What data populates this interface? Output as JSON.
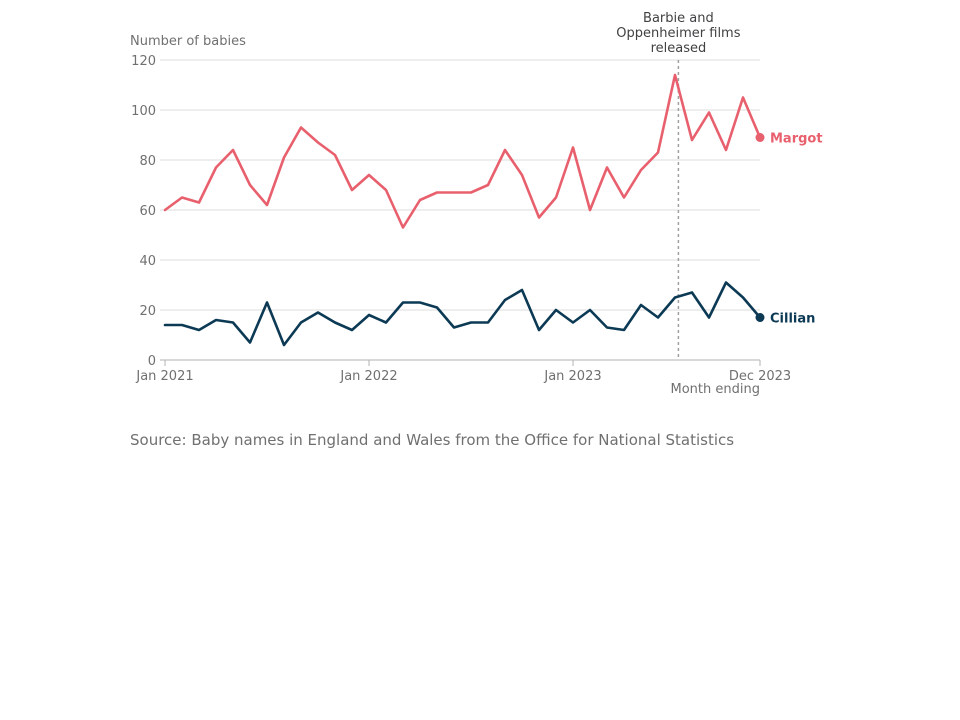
{
  "chart_data": {
    "type": "line",
    "ylabel": "Number of babies",
    "xlabel": "Month ending",
    "ylim": [
      0,
      120
    ],
    "yticks": [
      0,
      20,
      40,
      60,
      80,
      100,
      120
    ],
    "x_start": "Jan 2021",
    "x_end": "Dec 2023",
    "xticks": [
      {
        "month_index": 0,
        "label": "Jan 2021"
      },
      {
        "month_index": 12,
        "label": "Jan 2022"
      },
      {
        "month_index": 24,
        "label": "Jan 2023"
      },
      {
        "month_index": 35,
        "label": "Dec 2023"
      }
    ],
    "grid": true,
    "series": [
      {
        "name": "Margot",
        "color": "#e8606d",
        "values": [
          60,
          65,
          63,
          77,
          84,
          70,
          62,
          81,
          93,
          87,
          82,
          68,
          74,
          68,
          53,
          64,
          67,
          67,
          67,
          70,
          84,
          74,
          57,
          65,
          85,
          60,
          77,
          65,
          76,
          83,
          114,
          88,
          99,
          84,
          105,
          89
        ]
      },
      {
        "name": "Cillian",
        "color": "#0c3a55",
        "values": [
          14,
          14,
          12,
          16,
          15,
          7,
          23,
          6,
          15,
          19,
          15,
          12,
          18,
          15,
          23,
          23,
          21,
          13,
          15,
          15,
          24,
          28,
          12,
          20,
          15,
          20,
          13,
          12,
          22,
          17,
          25,
          27,
          17,
          31,
          25,
          17
        ]
      }
    ],
    "annotation": {
      "month_index": 30.2,
      "lines": [
        "Barbie and",
        "Oppenheimer films",
        "released"
      ]
    }
  },
  "source": "Source: Baby names in England and Wales from the Office for National Statistics"
}
